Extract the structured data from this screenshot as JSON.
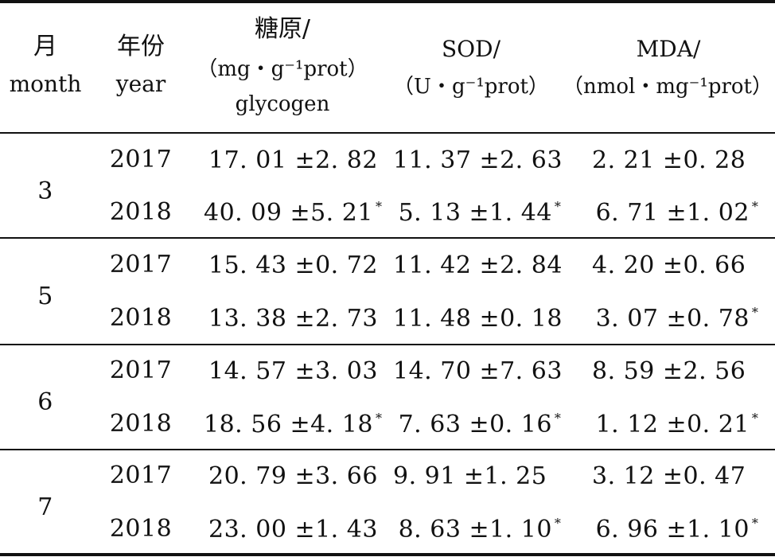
{
  "table": {
    "headers": {
      "month_cn": "月",
      "month_en": "month",
      "year_cn": "年份",
      "year_en": "year",
      "glycogen_cn": "糖原/",
      "glycogen_unit": "（mg・g⁻¹prot）",
      "glycogen_en": "glycogen",
      "sod_name": "SOD/",
      "sod_unit": "（U・g⁻¹prot）",
      "mda_name": "MDA/",
      "mda_unit": "（nmol・mg⁻¹prot）"
    },
    "groups": [
      {
        "month": "3",
        "rows": [
          {
            "year": "2017",
            "glycogen": "17. 01 ±2. 82",
            "glycogen_sig": "",
            "sod": "11. 37 ±2. 63",
            "sod_sig": "",
            "mda": "2. 21 ±0. 28",
            "mda_sig": ""
          },
          {
            "year": "2018",
            "glycogen": "40. 09 ±5. 21",
            "glycogen_sig": "*",
            "sod": "5. 13 ±1. 44",
            "sod_sig": "*",
            "mda": "6. 71 ±1. 02",
            "mda_sig": "*"
          }
        ]
      },
      {
        "month": "5",
        "rows": [
          {
            "year": "2017",
            "glycogen": "15. 43 ±0. 72",
            "glycogen_sig": "",
            "sod": "11. 42 ±2. 84",
            "sod_sig": "",
            "mda": "4. 20 ±0. 66",
            "mda_sig": ""
          },
          {
            "year": "2018",
            "glycogen": "13. 38 ±2. 73",
            "glycogen_sig": "",
            "sod": "11. 48 ±0. 18",
            "sod_sig": "",
            "mda": "3. 07 ±0. 78",
            "mda_sig": "*"
          }
        ]
      },
      {
        "month": "6",
        "rows": [
          {
            "year": "2017",
            "glycogen": "14. 57 ±3. 03",
            "glycogen_sig": "",
            "sod": "14. 70 ±7. 63",
            "sod_sig": "",
            "mda": "8. 59 ±2. 56",
            "mda_sig": ""
          },
          {
            "year": "2018",
            "glycogen": "18. 56 ±4. 18",
            "glycogen_sig": "*",
            "sod": "7. 63 ±0. 16",
            "sod_sig": "*",
            "mda": "1. 12 ±0. 21",
            "mda_sig": "*"
          }
        ]
      },
      {
        "month": "7",
        "rows": [
          {
            "year": "2017",
            "glycogen": "20. 79 ±3. 66",
            "glycogen_sig": "",
            "sod": "9. 91 ±1. 25",
            "sod_sig": "",
            "mda": "3. 12 ±0. 47",
            "mda_sig": ""
          },
          {
            "year": "2018",
            "glycogen": "23. 00 ±1. 43",
            "glycogen_sig": "",
            "sod": "8. 63 ±1. 10",
            "sod_sig": "*",
            "mda": "6. 96 ±1. 10",
            "mda_sig": "*"
          }
        ]
      }
    ]
  }
}
